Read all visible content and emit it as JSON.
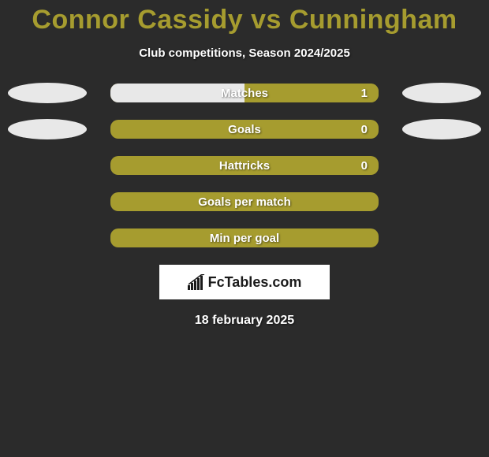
{
  "title": "Connor Cassidy vs Cunningham",
  "subtitle": "Club competitions, Season 2024/2025",
  "date": "18 february 2025",
  "logo_text": "FcTables.com",
  "colors": {
    "background": "#2b2b2b",
    "accent": "#a69c2f",
    "text": "#ffffff",
    "ellipse_light": "#e8e8e8"
  },
  "bars": [
    {
      "label": "Matches",
      "value": "1",
      "left_color": "#e8e8e8",
      "right_color": "#a69c2f",
      "split": 0.5,
      "ellipse_left": "#e8e8e8",
      "ellipse_right": "#e8e8e8",
      "show_value": true,
      "show_ellipses": true
    },
    {
      "label": "Goals",
      "value": "0",
      "left_color": "#a69c2f",
      "right_color": "#a69c2f",
      "split": 0,
      "ellipse_left": "#e8e8e8",
      "ellipse_right": "#e8e8e8",
      "show_value": true,
      "show_ellipses": true
    },
    {
      "label": "Hattricks",
      "value": "0",
      "left_color": "#a69c2f",
      "right_color": "#a69c2f",
      "split": 0,
      "ellipse_left": "",
      "ellipse_right": "",
      "show_value": true,
      "show_ellipses": false
    },
    {
      "label": "Goals per match",
      "value": "",
      "left_color": "#a69c2f",
      "right_color": "#a69c2f",
      "split": 0,
      "ellipse_left": "",
      "ellipse_right": "",
      "show_value": false,
      "show_ellipses": false
    },
    {
      "label": "Min per goal",
      "value": "",
      "left_color": "#a69c2f",
      "right_color": "#a69c2f",
      "split": 0,
      "ellipse_left": "",
      "ellipse_right": "",
      "show_value": false,
      "show_ellipses": false
    }
  ]
}
